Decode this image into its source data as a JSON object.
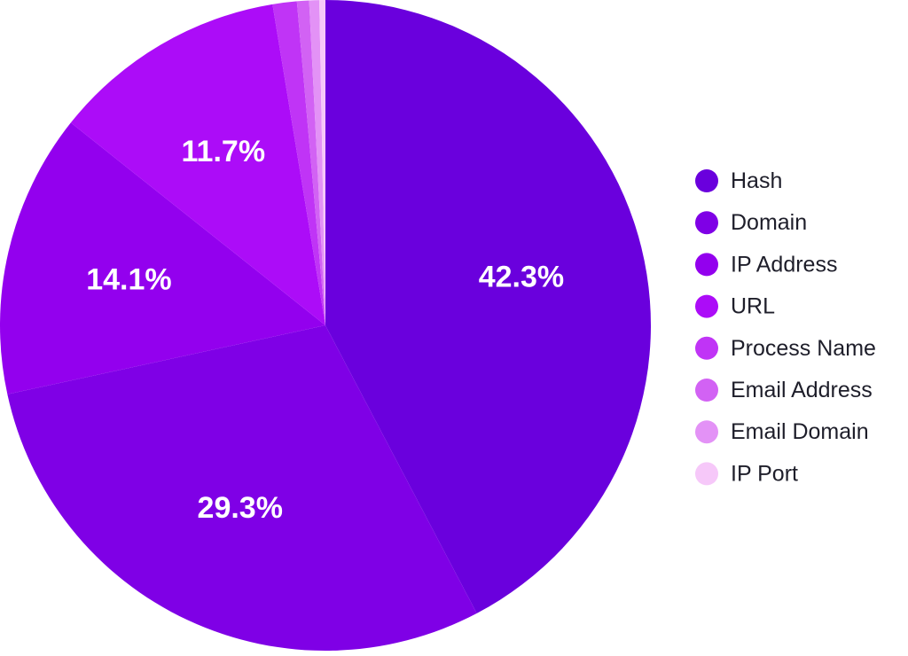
{
  "chart_data": {
    "type": "pie",
    "labels": [
      "Hash",
      "Domain",
      "IP Address",
      "URL",
      "Process Name",
      "Email Address",
      "Email Domain",
      "IP Port"
    ],
    "values": [
      42.3,
      29.3,
      14.1,
      11.7,
      1.2,
      0.6,
      0.5,
      0.3
    ],
    "data_labels": [
      "42.3%",
      "29.3%",
      "14.1%",
      "11.7%",
      "",
      "",
      "",
      ""
    ],
    "colors": [
      "#6a00dd",
      "#7f00e6",
      "#9300ee",
      "#ac0cf8",
      "#c034f6",
      "#d262f4",
      "#e392f6",
      "#f6c8f9"
    ],
    "legend_position": "right",
    "start_angle_deg": 0,
    "direction": "clockwise"
  }
}
